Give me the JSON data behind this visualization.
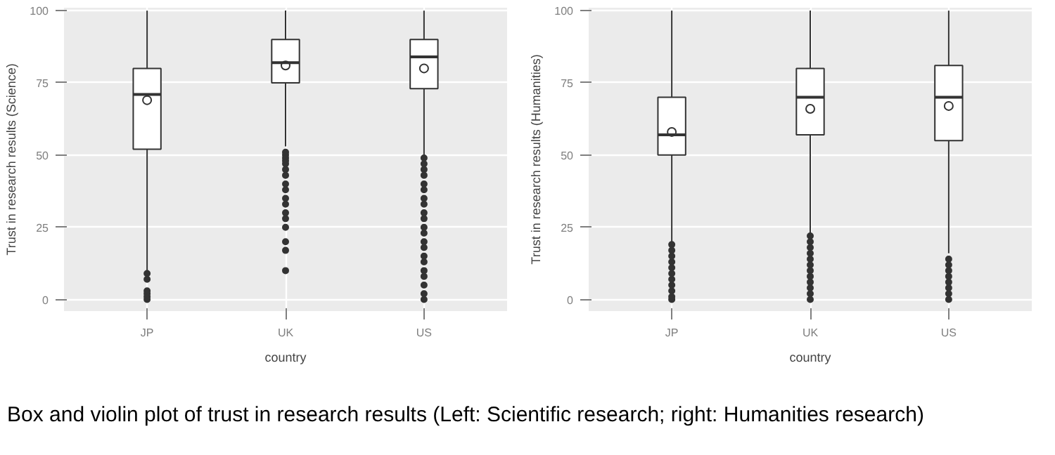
{
  "chart_data": [
    {
      "type": "box",
      "xlabel": "country",
      "ylabel": "Trust in research results (Science)",
      "categories": [
        "JP",
        "UK",
        "US"
      ],
      "ylim": [
        -4,
        101
      ],
      "yticks": [
        0,
        25,
        50,
        75,
        100
      ],
      "grid": true,
      "boxes": [
        {
          "low": 10,
          "q1": 52,
          "median": 71,
          "q3": 80,
          "high": 100,
          "mean": 69,
          "outliers": [
            0,
            1,
            2,
            3,
            7,
            9
          ]
        },
        {
          "low": 53,
          "q1": 75,
          "median": 82,
          "q3": 90,
          "high": 100,
          "mean": 81,
          "outliers": [
            10,
            17,
            20,
            25,
            28,
            30,
            33,
            35,
            38,
            40,
            43,
            45,
            47,
            48,
            49,
            50,
            51
          ]
        },
        {
          "low": 50,
          "q1": 73,
          "median": 84,
          "q3": 90,
          "high": 100,
          "mean": 80,
          "outliers": [
            0,
            2,
            5,
            8,
            10,
            13,
            15,
            18,
            20,
            23,
            25,
            28,
            30,
            33,
            35,
            38,
            40,
            43,
            45,
            47,
            49
          ]
        }
      ]
    },
    {
      "type": "box",
      "xlabel": "country",
      "ylabel": "Trust in research results (Humanities)",
      "categories": [
        "JP",
        "UK",
        "US"
      ],
      "ylim": [
        -4,
        101
      ],
      "yticks": [
        0,
        25,
        50,
        75,
        100
      ],
      "grid": true,
      "boxes": [
        {
          "low": 20,
          "q1": 50,
          "median": 57,
          "q3": 70,
          "high": 100,
          "mean": 58,
          "outliers": [
            0,
            1,
            3,
            5,
            7,
            9,
            11,
            13,
            15,
            17,
            19
          ]
        },
        {
          "low": 23,
          "q1": 57,
          "median": 70,
          "q3": 80,
          "high": 100,
          "mean": 66,
          "outliers": [
            0,
            2,
            4,
            6,
            8,
            10,
            12,
            14,
            16,
            18,
            20,
            22
          ]
        },
        {
          "low": 16,
          "q1": 55,
          "median": 70,
          "q3": 81,
          "high": 100,
          "mean": 67,
          "outliers": [
            0,
            2,
            4,
            6,
            8,
            10,
            12,
            14
          ]
        }
      ],
      "annotations": [
        "Box and violin plot of trust in research results (Left: Scientific research; right: Humanities research)"
      ]
    }
  ]
}
